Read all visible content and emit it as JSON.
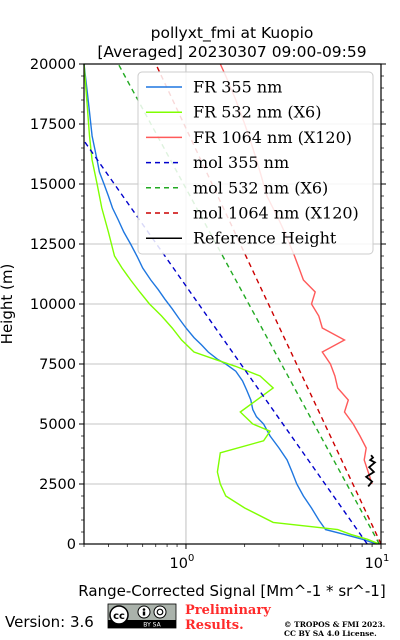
{
  "chart_data": {
    "type": "line",
    "title": "pollyxt_fmi at Kuopio",
    "subtitle": "[Averaged] 20230307 09:00-09:59",
    "xlabel": "Range-Corrected Signal [Mm^-1 * sr^-1]",
    "ylabel": "Height (m)",
    "xscale": "log",
    "xlim": [
      0.3,
      10
    ],
    "ylim": [
      0,
      20000
    ],
    "xticks": [
      1,
      10
    ],
    "xtick_labels": [
      "10^0",
      "10^1"
    ],
    "yticks": [
      0,
      2500,
      5000,
      7500,
      10000,
      12500,
      15000,
      17500,
      20000
    ],
    "ytick_labels": [
      "0",
      "2500",
      "5000",
      "7500",
      "10000",
      "12500",
      "15000",
      "17500",
      "20000"
    ],
    "grid": true,
    "legend_position": "top-right",
    "series": [
      {
        "name": "FR 355 nm",
        "color": "#1f77e0",
        "style": "solid",
        "x": [
          9.5,
          8.0,
          6.5,
          5.2,
          4.8,
          4.4,
          4.0,
          3.7,
          3.5,
          3.3,
          3.0,
          2.7,
          2.5,
          2.3,
          2.2,
          2.15,
          2.05,
          1.95,
          1.8,
          1.6,
          1.45,
          1.3,
          1.2,
          1.1,
          1.0,
          0.92,
          0.85,
          0.78,
          0.72,
          0.66,
          0.6,
          0.56,
          0.52,
          0.48,
          0.45,
          0.42,
          0.4,
          0.38,
          0.36,
          0.35,
          0.34,
          0.33,
          0.32,
          0.31,
          0.3
        ],
        "y": [
          0,
          200,
          400,
          600,
          1000,
          1500,
          2000,
          2500,
          3000,
          3500,
          4000,
          4500,
          5000,
          5300,
          5600,
          6000,
          6400,
          6800,
          7200,
          7500,
          7700,
          8000,
          8300,
          8600,
          9000,
          9400,
          9800,
          10200,
          10600,
          11000,
          11500,
          12000,
          12500,
          13000,
          13500,
          14000,
          14500,
          15000,
          15500,
          16000,
          16500,
          17000,
          18000,
          19000,
          20000
        ]
      },
      {
        "name": "FR 532 nm (X6)",
        "color": "#7fff00",
        "style": "solid",
        "x": [
          9.8,
          8.5,
          7.0,
          6.0,
          2.8,
          2.0,
          1.6,
          1.5,
          1.45,
          1.5,
          2.5,
          2.7,
          2.2,
          1.9,
          2.8,
          2.4,
          1.8,
          1.4,
          1.1,
          0.95,
          0.85,
          0.75,
          0.65,
          0.58,
          0.52,
          0.47,
          0.43,
          0.4,
          0.37,
          0.35,
          0.33,
          0.32,
          0.31,
          0.3
        ],
        "y": [
          0,
          200,
          400,
          600,
          900,
          1500,
          2000,
          2500,
          3000,
          3800,
          4300,
          4700,
          5000,
          5500,
          6500,
          7000,
          7400,
          7700,
          8000,
          8500,
          9000,
          9500,
          10000,
          10500,
          11000,
          11500,
          12000,
          13000,
          14000,
          15000,
          16000,
          17000,
          18500,
          20000
        ]
      },
      {
        "name": "FR 1064 nm (X120)",
        "color": "#ff5a5a",
        "style": "solid",
        "x": [
          9.0,
          8.6,
          8.2,
          8.4,
          7.8,
          7.2,
          6.5,
          6.8,
          6.0,
          5.8,
          5.5,
          5.0,
          6.5,
          5.0,
          4.8,
          4.4,
          4.6,
          4.0,
          3.8,
          3.6,
          3.4,
          3.2,
          3.0,
          2.6,
          2.4,
          2.2,
          2.0,
          1.8,
          1.6,
          1.5
        ],
        "y": [
          2500,
          3000,
          3500,
          4000,
          4500,
          5000,
          5500,
          6000,
          6500,
          7000,
          7500,
          8000,
          8500,
          9000,
          9500,
          10000,
          10500,
          11000,
          11500,
          12000,
          12500,
          13000,
          13500,
          14500,
          15500,
          16500,
          17500,
          18500,
          19500,
          20000
        ]
      },
      {
        "name": "mol 355 nm",
        "color": "#0000cc",
        "style": "dashed",
        "x": [
          8.5,
          0.3
        ],
        "y": [
          0,
          16800
        ]
      },
      {
        "name": "mol 532 nm (X6)",
        "color": "#22aa22",
        "style": "dashed",
        "x": [
          9.8,
          0.45
        ],
        "y": [
          0,
          20000
        ]
      },
      {
        "name": "mol 1064 nm (X120)",
        "color": "#cc0000",
        "style": "dashed",
        "x": [
          10.0,
          0.7
        ],
        "y": [
          0,
          20000
        ]
      },
      {
        "name": "Reference Height",
        "color": "#000000",
        "style": "solid",
        "x": [
          8.6,
          9.0,
          8.4,
          9.2,
          8.7,
          9.3,
          8.8,
          9.1,
          8.9
        ],
        "y": [
          2400,
          2600,
          2800,
          3000,
          3200,
          3400,
          3500,
          3600,
          3700
        ]
      }
    ]
  },
  "legend_labels": [
    "FR 355 nm",
    "FR 532 nm (X6)",
    "FR 1064 nm (X120)",
    "mol 355 nm",
    "mol 532 nm (X6)",
    "mol 1064 nm (X120)",
    "Reference Height"
  ],
  "footer": {
    "version": "Version: 3.6",
    "license_badge": "BY SA",
    "preliminary_line1": "Preliminary",
    "preliminary_line2": "Results.",
    "copyright_line1": "© TROPOS & FMI 2023.",
    "copyright_line2": "CC BY SA 4.0 License."
  }
}
